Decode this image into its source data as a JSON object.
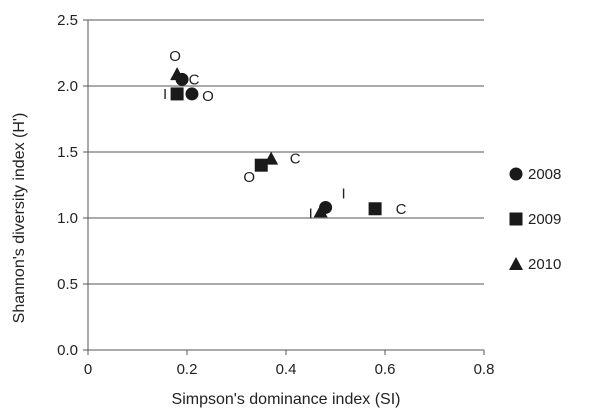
{
  "chart_data": {
    "type": "scatter",
    "xlabel": "Simpson's dominance index (SI)",
    "ylabel": "Shannon's diversity index (H')",
    "xlim": [
      0,
      0.8
    ],
    "ylim": [
      0,
      2.5
    ],
    "x_ticks": [
      0,
      0.2,
      0.4,
      0.6,
      0.8
    ],
    "x_tick_labels": [
      "0",
      "0.2",
      "0.4",
      "0.6",
      "0.8"
    ],
    "y_ticks": [
      0,
      0.5,
      1.0,
      1.5,
      2.0,
      2.5
    ],
    "y_tick_labels": [
      "0.0",
      "0.5",
      "1.0",
      "1.5",
      "2.0",
      "2.5"
    ],
    "grid": "horizontal",
    "legend_position": "right",
    "marker_color": "#1a1a1a",
    "series": [
      {
        "name": "2008",
        "marker": "circle",
        "points": [
          {
            "x": 0.19,
            "y": 2.05,
            "label": "C"
          },
          {
            "x": 0.21,
            "y": 1.94,
            "label": "O"
          },
          {
            "x": 0.48,
            "y": 1.08,
            "label": "I"
          }
        ]
      },
      {
        "name": "2009",
        "marker": "square",
        "points": [
          {
            "x": 0.18,
            "y": 1.94,
            "label": "I"
          },
          {
            "x": 0.35,
            "y": 1.4,
            "label": "O"
          },
          {
            "x": 0.58,
            "y": 1.07,
            "label": "C"
          }
        ]
      },
      {
        "name": "2010",
        "marker": "triangle",
        "points": [
          {
            "x": 0.18,
            "y": 2.09,
            "label": "O"
          },
          {
            "x": 0.37,
            "y": 1.45,
            "label": "C"
          },
          {
            "x": 0.47,
            "y": 1.05,
            "label": "I"
          }
        ]
      }
    ]
  }
}
